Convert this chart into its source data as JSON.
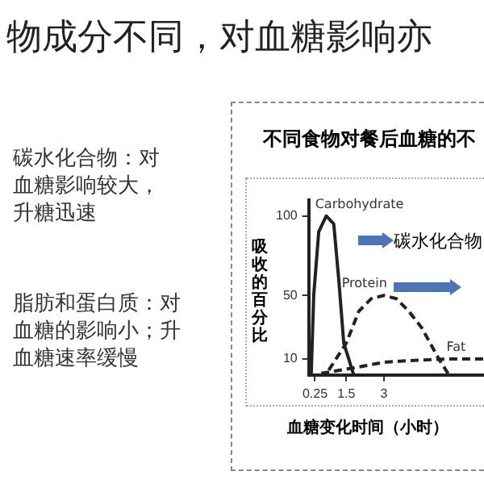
{
  "chart_data": {
    "type": "line",
    "title": "物成分不同，对血糖影响亦",
    "subtitle": "不同食物对餐后血糖的不",
    "xlabel": "血糖变化时间（小时）",
    "ylabel": "吸收的百分比",
    "annotations": [
      "碳水化合物：对血糖影响较大，升糖迅速",
      "脂肪和蛋白质：对血糖的影响小；升血糖速率缓慢",
      "碳水化合物"
    ],
    "xlim": [
      0,
      7
    ],
    "xticks": [
      0.25,
      1.5,
      3
    ],
    "ylim": [
      0,
      110
    ],
    "yticks": [
      10,
      50,
      100
    ],
    "grid": false,
    "marker": "none",
    "series": [
      {
        "name": "Carbohydrate",
        "color": "#222222",
        "line_style": "solid",
        "x": [
          0.1,
          0.2,
          0.4,
          0.7,
          1.0,
          1.2,
          1.4,
          1.8
        ],
        "values": [
          0,
          50,
          90,
          100,
          95,
          60,
          20,
          0
        ]
      },
      {
        "name": "Protein",
        "color": "#222222",
        "line_style": "dashed",
        "x": [
          0.8,
          1.5,
          2.0,
          2.5,
          3.0,
          3.5,
          4.0,
          4.5,
          5.2,
          5.6
        ],
        "values": [
          3,
          20,
          40,
          48,
          50,
          48,
          40,
          30,
          10,
          0
        ]
      },
      {
        "name": "Fat",
        "color": "#222222",
        "line_style": "dashed",
        "x": [
          0.5,
          2,
          3,
          4,
          5.5,
          7
        ],
        "values": [
          1,
          5,
          8,
          9,
          10,
          10
        ]
      }
    ]
  }
}
